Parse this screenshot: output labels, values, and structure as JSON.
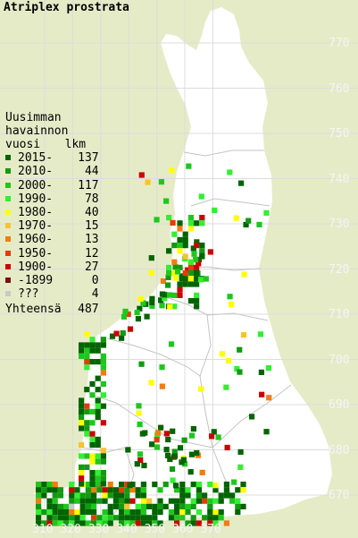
{
  "title": "Atriplex prostrata",
  "legend": {
    "heading_lines": [
      "Uusimman",
      "havainnon"
    ],
    "col_year": "vuosi",
    "col_count": "lkm",
    "entries": [
      {
        "label": "2015-",
        "count": "137",
        "color": "#006400"
      },
      {
        "label": "2010-",
        "count": "44",
        "color": "#129a12"
      },
      {
        "label": "2000-",
        "count": "117",
        "color": "#1ec71e"
      },
      {
        "label": "1990-",
        "count": "78",
        "color": "#33ee33"
      },
      {
        "label": "1980-",
        "count": "40",
        "color": "#ffff00"
      },
      {
        "label": "1970-",
        "count": "15",
        "color": "#f7c331"
      },
      {
        "label": "1960-",
        "count": "13",
        "color": "#f07d10"
      },
      {
        "label": "1950-",
        "count": "12",
        "color": "#e33c0a"
      },
      {
        "label": "1900-",
        "count": "27",
        "color": "#cc0000"
      },
      {
        "label": "-1899",
        "count": "0",
        "color": "#7a1010"
      },
      {
        "label": "???",
        "count": "4",
        "color": "#c8c8c8"
      }
    ],
    "total_label": "Yhteensä",
    "total_count": "487"
  },
  "axes": {
    "y_ticks": [
      "770",
      "760",
      "750",
      "740",
      "730",
      "720",
      "710",
      "700",
      "690",
      "680",
      "670"
    ],
    "x_ticks": [
      "310",
      "320",
      "330",
      "340",
      "350",
      "360",
      "370"
    ]
  },
  "colors": {
    "background": "#e6ebc7",
    "land": "#ffffff",
    "grid": "#dcdcdc",
    "boundary": "#c4c4c4"
  }
}
